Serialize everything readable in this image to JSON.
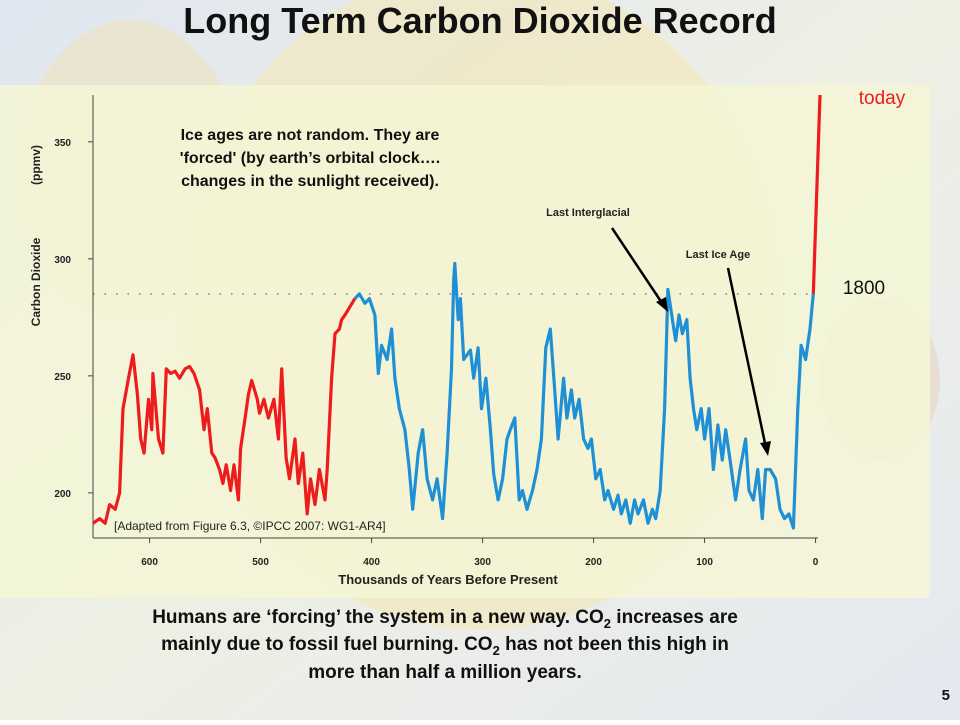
{
  "chart_data": {
    "type": "line",
    "title": "Long Term Carbon Dioxide Record",
    "ylabel": "Carbon Dioxide",
    "ylabel_unit": "(ppmv)",
    "xlabel": "Thousands of Years Before Present",
    "xlim": [
      651,
      -4
    ],
    "ylim": [
      182,
      370
    ],
    "xticks": [
      600,
      500,
      400,
      300,
      200,
      100,
      0
    ],
    "yticks": [
      200,
      250,
      300,
      350
    ],
    "reference_line": {
      "value": 285,
      "label": "1800"
    },
    "today_label": "today",
    "annotation": [
      "Ice ages are not random. They are",
      "'forced' (by earth’s orbital clock….",
      "changes in the sunlight received)."
    ],
    "source": "[Adapted from Figure 6.3, ©IPCC 2007:  WG1-AR4]",
    "arrow_labels": [
      "Last Interglacial",
      "Last Ice Age"
    ],
    "series": [
      {
        "color": "#ee1c1c",
        "x": [
          651,
          645,
          640,
          636,
          631,
          627,
          624,
          619,
          615,
          611,
          608,
          605,
          601,
          598,
          597,
          592,
          588,
          585,
          581,
          577,
          573,
          568,
          564,
          560,
          555,
          551,
          548,
          544,
          541,
          537,
          534,
          531,
          527,
          524,
          520,
          518,
          514,
          511,
          508,
          503,
          501,
          497,
          493,
          488,
          484,
          481,
          477,
          474,
          469,
          466,
          462,
          458,
          455,
          451,
          447,
          442,
          440,
          436,
          433,
          429,
          427,
          424,
          415
        ],
        "values": [
          187,
          189,
          187,
          195,
          193,
          200,
          236,
          249,
          259,
          242,
          223,
          217,
          240,
          227,
          251,
          223,
          217,
          253,
          251,
          252,
          249,
          253,
          254,
          251,
          244,
          227,
          236,
          217,
          215,
          210,
          204,
          212,
          201,
          212,
          197,
          219,
          232,
          242,
          248,
          240,
          234,
          240,
          232,
          240,
          223,
          253,
          215,
          206,
          223,
          204,
          217,
          191,
          206,
          195,
          210,
          197,
          210,
          249,
          268,
          270,
          274,
          276,
          283
        ]
      },
      {
        "color": "#1f8fd6",
        "x": [
          415,
          411,
          406,
          402,
          397,
          394,
          391,
          386,
          382,
          379,
          375,
          370,
          366,
          363,
          358,
          354,
          350,
          345,
          341,
          336,
          332,
          328,
          326,
          325,
          322,
          320,
          317,
          311,
          308,
          304,
          301,
          297,
          293,
          290,
          286,
          282,
          278,
          275,
          271,
          267,
          264,
          260,
          255,
          251,
          247,
          243,
          239,
          235,
          232,
          227,
          224,
          220,
          217,
          213,
          209,
          205,
          202,
          198,
          194,
          190,
          187,
          182,
          178,
          175,
          171,
          167,
          163,
          160,
          155,
          151,
          147,
          144,
          140,
          136,
          133,
          129,
          126,
          123,
          120,
          116,
          113,
          110,
          107,
          103,
          100,
          96,
          92,
          88,
          84,
          81,
          77,
          72,
          68,
          63,
          60,
          56,
          52,
          48,
          45,
          41,
          36,
          32,
          28,
          24,
          20,
          16,
          13,
          9,
          5,
          2
        ],
        "values": [
          283,
          285,
          281,
          283,
          276,
          251,
          263,
          257,
          270,
          249,
          236,
          227,
          210,
          193,
          217,
          227,
          206,
          197,
          206,
          189,
          217,
          253,
          291,
          298,
          274,
          283,
          257,
          261,
          249,
          262,
          236,
          249,
          227,
          208,
          197,
          206,
          223,
          227,
          232,
          197,
          201,
          193,
          201,
          210,
          223,
          262,
          270,
          244,
          223,
          249,
          232,
          244,
          232,
          240,
          223,
          219,
          223,
          206,
          210,
          197,
          201,
          193,
          199,
          191,
          197,
          187,
          197,
          191,
          197,
          187,
          193,
          189,
          201,
          236,
          287,
          274,
          265,
          276,
          268,
          274,
          249,
          236,
          227,
          236,
          223,
          236,
          210,
          229,
          214,
          227,
          214,
          197,
          210,
          223,
          201,
          197,
          210,
          189,
          210,
          210,
          206,
          193,
          189,
          191,
          185,
          236,
          263,
          257,
          270,
          285
        ]
      },
      {
        "color": "#ee1c1c",
        "x": [
          2,
          -4
        ],
        "values": [
          285,
          370
        ]
      }
    ]
  },
  "caption": [
    "Humans are ‘forcing’ the system in a new way.    CO",
    "2",
    " increases are",
    "mainly due to fossil fuel burning.  CO",
    "2",
    " has not been this high in",
    "more than half a million years."
  ],
  "page_number": "5"
}
